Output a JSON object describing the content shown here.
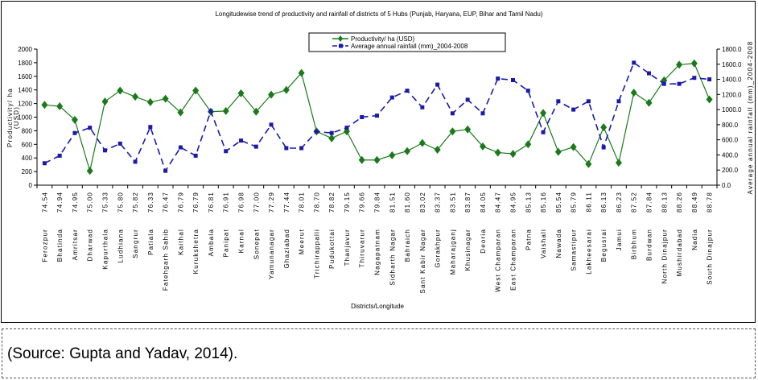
{
  "chart_data": {
    "type": "line",
    "title": "Longitudewise trend of productivity and rainfall of districts of 5 Hubs (Punjab, Haryana, EUP, Bihar and Tamil Nadu)",
    "xlabel": "Districts/Longitude",
    "ylabel_left_line1": "Productivity/ ha",
    "ylabel_left_line2": "(USD)",
    "ylabel_right": "Average annual rainfall (mm)_2004-2008",
    "ylim_left": [
      0,
      2000
    ],
    "yticks_left": [
      "0",
      "200",
      "400",
      "600",
      "800",
      "1000",
      "1200",
      "1400",
      "1600",
      "1800",
      "2000"
    ],
    "ylim_right": [
      0,
      1800
    ],
    "yticks_right": [
      "0.0",
      "200.0",
      "400.0",
      "600.0",
      "800.0",
      "1000.0",
      "1200.0",
      "1400.0",
      "1600.0",
      "1800.0"
    ],
    "grid": false,
    "legend_placement": "top-center",
    "categories": [
      "Ferozpur",
      "Bhatinda",
      "Amritsar",
      "Dharwad",
      "Kapurthala",
      "Ludhiana",
      "Sangrur",
      "Patiala",
      "Fatehgarh Sahib",
      "Kaithal",
      "Kurukshetra",
      "Ambala",
      "Panipat",
      "Karnal",
      "Sonepat",
      "Yamunanagar",
      "Ghaziabad",
      "Meerut",
      "Trichirappalli",
      "Pudukottai",
      "Thanjavur",
      "Thiruvarur",
      "Nagapatnam",
      "Sidharth Nagar",
      "Bahraich",
      "Sant Kabir Nagar",
      "Gorakhpur",
      "Maharajganj",
      "Khusinagar",
      "Deoria",
      "West Champaran",
      "East Champaran",
      "Patna",
      "Vaishali",
      "Nawada",
      "Samastipur",
      "Lakheesarai",
      "Begusrai",
      "Jamui",
      "Birbhum",
      "Burdwan",
      "North Dinajpur",
      "Mushirdabad",
      "Nadia",
      "South Dinajpur"
    ],
    "longitudes": [
      "74.54",
      "74.94",
      "74.95",
      "75.00",
      "75.33",
      "75.80",
      "75.82",
      "76.33",
      "76.47",
      "76.79",
      "76.79",
      "76.81",
      "76.91",
      "76.98",
      "77.00",
      "77.29",
      "77.44",
      "78.01",
      "78.70",
      "78.82",
      "79.15",
      "79.66",
      "79.84",
      "81.51",
      "81.60",
      "83.02",
      "83.37",
      "83.51",
      "83.87",
      "84.05",
      "84.47",
      "84.95",
      "85.13",
      "85.16",
      "85.54",
      "85.79",
      "86.11",
      "86.13",
      "86.23",
      "87.52",
      "87.84",
      "88.13",
      "88.26",
      "88.49",
      "88.78"
    ],
    "series": [
      {
        "name": "Productivity/ ha (USD)",
        "axis": "left",
        "color": "#1a7a1a",
        "marker": "diamond",
        "line": "solid",
        "values": [
          1180,
          1160,
          960,
          210,
          1230,
          1390,
          1300,
          1220,
          1270,
          1070,
          1390,
          1080,
          1090,
          1350,
          1080,
          1330,
          1400,
          1650,
          790,
          690,
          790,
          370,
          370,
          440,
          500,
          620,
          520,
          790,
          820,
          570,
          480,
          460,
          600,
          1060,
          490,
          560,
          310,
          850,
          330,
          1360,
          1210,
          1540,
          1770,
          1790,
          1260
        ]
      },
      {
        "name": "Average annual rainfall (mm)_2004-2008",
        "axis": "right",
        "color": "#1a1aaa",
        "marker": "square",
        "line": "dashed",
        "values": [
          290,
          390,
          690,
          760,
          460,
          550,
          310,
          770,
          190,
          500,
          390,
          980,
          450,
          590,
          510,
          800,
          490,
          490,
          710,
          690,
          760,
          900,
          920,
          1160,
          1250,
          1030,
          1330,
          950,
          1130,
          950,
          1410,
          1390,
          1250,
          700,
          1110,
          1000,
          1110,
          500,
          1110,
          1620,
          1480,
          1340,
          1340,
          1420,
          1400
        ]
      }
    ]
  },
  "source": "(Source: Gupta and Yadav, 2014)."
}
